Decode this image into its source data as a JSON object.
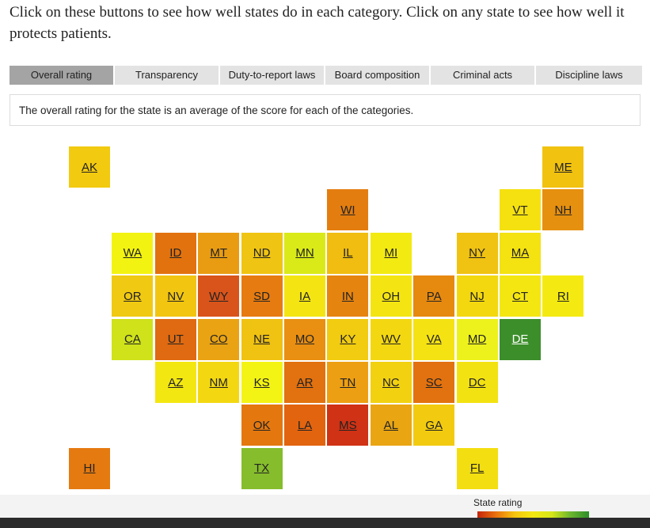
{
  "intro": "Click on these buttons to see how well states do in each category. Click on any state to see how well it protects patients.",
  "tabs": [
    {
      "label": "Overall rating",
      "active": true
    },
    {
      "label": "Transparency",
      "active": false
    },
    {
      "label": "Duty-to-report laws",
      "active": false
    },
    {
      "label": "Board composition",
      "active": false
    },
    {
      "label": "Criminal acts",
      "active": false
    },
    {
      "label": "Discipline laws",
      "active": false
    }
  ],
  "description": "The overall rating for the state is an average of the score for each of the categories.",
  "legend": {
    "title": "State rating",
    "colors": {
      "low": "#c4250b",
      "high": "#2f8d28"
    }
  },
  "states": [
    {
      "abbr": "AK",
      "row": 0,
      "col": 0,
      "color": "#f2ca0f"
    },
    {
      "abbr": "ME",
      "row": 0,
      "col": 11,
      "color": "#f1c210"
    },
    {
      "abbr": "WI",
      "row": 1,
      "col": 6,
      "color": "#e47d0f"
    },
    {
      "abbr": "VT",
      "row": 1,
      "col": 10,
      "color": "#f5e10f"
    },
    {
      "abbr": "NH",
      "row": 1,
      "col": 11,
      "color": "#e6900f"
    },
    {
      "abbr": "WA",
      "row": 2,
      "col": 1,
      "color": "#f3f311"
    },
    {
      "abbr": "ID",
      "row": 2,
      "col": 2,
      "color": "#e2720e"
    },
    {
      "abbr": "MT",
      "row": 2,
      "col": 3,
      "color": "#e99c12"
    },
    {
      "abbr": "ND",
      "row": 2,
      "col": 4,
      "color": "#f0c412"
    },
    {
      "abbr": "MN",
      "row": 2,
      "col": 5,
      "color": "#daea18"
    },
    {
      "abbr": "IL",
      "row": 2,
      "col": 6,
      "color": "#f0bd10"
    },
    {
      "abbr": "MI",
      "row": 2,
      "col": 7,
      "color": "#f3ea11"
    },
    {
      "abbr": "NY",
      "row": 2,
      "col": 9,
      "color": "#f0c212"
    },
    {
      "abbr": "MA",
      "row": 2,
      "col": 10,
      "color": "#f4e211"
    },
    {
      "abbr": "OR",
      "row": 3,
      "col": 1,
      "color": "#f0c912"
    },
    {
      "abbr": "NV",
      "row": 3,
      "col": 2,
      "color": "#f2c511"
    },
    {
      "abbr": "WY",
      "row": 3,
      "col": 3,
      "color": "#d9541b"
    },
    {
      "abbr": "SD",
      "row": 3,
      "col": 4,
      "color": "#e67b11"
    },
    {
      "abbr": "IA",
      "row": 3,
      "col": 5,
      "color": "#f4e512"
    },
    {
      "abbr": "IN",
      "row": 3,
      "col": 6,
      "color": "#e68410"
    },
    {
      "abbr": "OH",
      "row": 3,
      "col": 7,
      "color": "#f4e512"
    },
    {
      "abbr": "PA",
      "row": 3,
      "col": 8,
      "color": "#e6890f"
    },
    {
      "abbr": "NJ",
      "row": 3,
      "col": 9,
      "color": "#f3d810"
    },
    {
      "abbr": "CT",
      "row": 3,
      "col": 10,
      "color": "#f4e711"
    },
    {
      "abbr": "RI",
      "row": 3,
      "col": 11,
      "color": "#f4ea11"
    },
    {
      "abbr": "CA",
      "row": 4,
      "col": 1,
      "color": "#cfe21a"
    },
    {
      "abbr": "UT",
      "row": 4,
      "col": 2,
      "color": "#df6a11"
    },
    {
      "abbr": "CO",
      "row": 4,
      "col": 3,
      "color": "#eaa313"
    },
    {
      "abbr": "NE",
      "row": 4,
      "col": 4,
      "color": "#f0c212"
    },
    {
      "abbr": "MO",
      "row": 4,
      "col": 5,
      "color": "#e98f12"
    },
    {
      "abbr": "KY",
      "row": 4,
      "col": 6,
      "color": "#f1cc10"
    },
    {
      "abbr": "WV",
      "row": 4,
      "col": 7,
      "color": "#f3d811"
    },
    {
      "abbr": "VA",
      "row": 4,
      "col": 8,
      "color": "#f5e212"
    },
    {
      "abbr": "MD",
      "row": 4,
      "col": 9,
      "color": "#eef21c"
    },
    {
      "abbr": "DE",
      "row": 4,
      "col": 10,
      "color": "#3c8e2a",
      "dark": true
    },
    {
      "abbr": "AZ",
      "row": 5,
      "col": 2,
      "color": "#f3e711"
    },
    {
      "abbr": "NM",
      "row": 5,
      "col": 3,
      "color": "#f3d811"
    },
    {
      "abbr": "KS",
      "row": 5,
      "col": 4,
      "color": "#f4f414"
    },
    {
      "abbr": "AR",
      "row": 5,
      "col": 5,
      "color": "#e2710f"
    },
    {
      "abbr": "TN",
      "row": 5,
      "col": 6,
      "color": "#ed9f13"
    },
    {
      "abbr": "NC",
      "row": 5,
      "col": 7,
      "color": "#f2d110"
    },
    {
      "abbr": "SC",
      "row": 5,
      "col": 8,
      "color": "#e2720f"
    },
    {
      "abbr": "DC",
      "row": 5,
      "col": 9,
      "color": "#f3e212"
    },
    {
      "abbr": "OK",
      "row": 6,
      "col": 4,
      "color": "#e4780f"
    },
    {
      "abbr": "LA",
      "row": 6,
      "col": 5,
      "color": "#e2640f"
    },
    {
      "abbr": "MS",
      "row": 6,
      "col": 6,
      "color": "#cf3214"
    },
    {
      "abbr": "AL",
      "row": 6,
      "col": 7,
      "color": "#e9a512"
    },
    {
      "abbr": "GA",
      "row": 6,
      "col": 8,
      "color": "#f2cb10"
    },
    {
      "abbr": "HI",
      "row": 7,
      "col": 0,
      "color": "#e57a11"
    },
    {
      "abbr": "TX",
      "row": 7,
      "col": 4,
      "color": "#86bd2c"
    },
    {
      "abbr": "FL",
      "row": 7,
      "col": 9,
      "color": "#f3de11"
    }
  ]
}
